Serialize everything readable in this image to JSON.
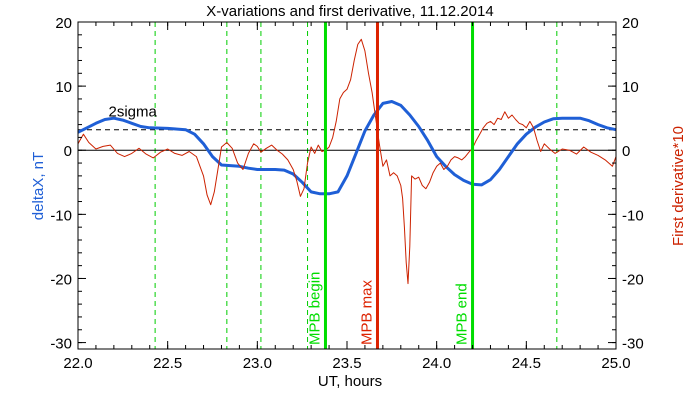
{
  "chart_data": {
    "type": "line",
    "title": "X-variations and first derivative, 11.12.2014",
    "xlabel": "UT, hours",
    "ylabel_left": "deltaX, nT",
    "ylabel_right": "First derivative*10",
    "xlim": [
      22.0,
      25.0
    ],
    "ylim_left": [
      -31,
      20
    ],
    "ylim_right": [
      -31,
      20
    ],
    "x_ticks": [
      "22.0",
      "22.5",
      "23.0",
      "23.5",
      "24.0",
      "24.5",
      "25.0"
    ],
    "y_ticks_left": [
      "20",
      "10",
      "0",
      "-10",
      "-20",
      "-30"
    ],
    "y_ticks_right": [
      "20",
      "10",
      "0",
      "-10",
      "-20",
      "-30"
    ],
    "sigma_label": "2sigma",
    "sigma_level": 3.2,
    "zero_line": 0,
    "colors": {
      "deltaX": "#1f5fd6",
      "derivative": "#cc2200",
      "mpb_boundary": "#00dd00",
      "mpb_max": "#dd2200",
      "dashed_green": "#00cc00"
    },
    "dashed_green_lines": [
      22.43,
      22.83,
      23.02,
      23.28,
      24.67
    ],
    "markers": [
      {
        "label": "MPB begin",
        "x": 23.38,
        "color": "#00dd00"
      },
      {
        "label": "MPB max",
        "x": 23.67,
        "color": "#dd2200"
      },
      {
        "label": "MPB end",
        "x": 24.2,
        "color": "#00dd00"
      }
    ],
    "series": [
      {
        "name": "deltaX",
        "axis": "left",
        "x": [
          22.0,
          22.05,
          22.1,
          22.15,
          22.2,
          22.25,
          22.3,
          22.35,
          22.4,
          22.5,
          22.6,
          22.65,
          22.7,
          22.75,
          22.8,
          22.85,
          22.9,
          22.95,
          23.0,
          23.05,
          23.1,
          23.15,
          23.2,
          23.25,
          23.3,
          23.35,
          23.4,
          23.45,
          23.5,
          23.55,
          23.6,
          23.65,
          23.7,
          23.75,
          23.8,
          23.85,
          23.9,
          23.95,
          24.0,
          24.05,
          24.1,
          24.15,
          24.2,
          24.25,
          24.3,
          24.35,
          24.4,
          24.45,
          24.5,
          24.55,
          24.6,
          24.65,
          24.7,
          24.75,
          24.8,
          24.85,
          24.9,
          24.95,
          25.0
        ],
        "y": [
          2.8,
          3.5,
          4.2,
          4.8,
          5.0,
          4.7,
          4.2,
          3.7,
          3.5,
          3.4,
          3.2,
          2.5,
          1.0,
          -1.0,
          -2.3,
          -2.4,
          -2.5,
          -2.8,
          -3.0,
          -3.0,
          -3.0,
          -3.1,
          -3.7,
          -5.0,
          -6.5,
          -6.8,
          -6.8,
          -6.5,
          -4.0,
          -0.5,
          3.0,
          5.5,
          7.3,
          7.6,
          7.0,
          5.5,
          3.7,
          1.5,
          -1.0,
          -2.5,
          -3.8,
          -4.7,
          -5.3,
          -5.4,
          -4.6,
          -3.0,
          -1.0,
          1.0,
          2.5,
          3.6,
          4.4,
          4.9,
          5.0,
          5.0,
          5.0,
          4.6,
          4.0,
          3.5,
          3.2
        ]
      },
      {
        "name": "First derivative*10",
        "axis": "right",
        "x": [
          22.0,
          22.03,
          22.06,
          22.1,
          22.14,
          22.18,
          22.22,
          22.26,
          22.3,
          22.34,
          22.38,
          22.42,
          22.46,
          22.5,
          22.54,
          22.58,
          22.62,
          22.66,
          22.7,
          22.72,
          22.74,
          22.76,
          22.78,
          22.8,
          22.83,
          22.86,
          22.89,
          22.92,
          22.95,
          22.98,
          23.0,
          23.02,
          23.05,
          23.08,
          23.11,
          23.14,
          23.17,
          23.2,
          23.22,
          23.24,
          23.26,
          23.28,
          23.3,
          23.32,
          23.34,
          23.36,
          23.38,
          23.4,
          23.42,
          23.44,
          23.46,
          23.48,
          23.5,
          23.52,
          23.54,
          23.56,
          23.58,
          23.6,
          23.62,
          23.64,
          23.66,
          23.68,
          23.7,
          23.72,
          23.74,
          23.76,
          23.78,
          23.8,
          23.81,
          23.82,
          23.83,
          23.84,
          23.85,
          23.86,
          23.88,
          23.9,
          23.92,
          23.94,
          23.96,
          23.98,
          24.0,
          24.02,
          24.04,
          24.06,
          24.08,
          24.1,
          24.12,
          24.14,
          24.16,
          24.18,
          24.2,
          24.22,
          24.24,
          24.26,
          24.28,
          24.3,
          24.32,
          24.34,
          24.36,
          24.38,
          24.4,
          24.42,
          24.44,
          24.46,
          24.48,
          24.5,
          24.52,
          24.54,
          24.56,
          24.58,
          24.6,
          24.63,
          24.66,
          24.7,
          24.74,
          24.78,
          24.82,
          24.86,
          24.9,
          24.94,
          24.98,
          25.0
        ],
        "y": [
          1.0,
          2.5,
          1.2,
          0.2,
          0.6,
          0.8,
          -0.5,
          -1.0,
          -0.5,
          0.3,
          -0.6,
          -1.2,
          -0.3,
          0.2,
          -0.5,
          -0.8,
          -0.2,
          -1.0,
          -4.0,
          -7.0,
          -8.5,
          -6.5,
          -3.0,
          0.5,
          1.2,
          0.3,
          -2.0,
          -3.0,
          -0.5,
          1.0,
          0.6,
          -0.3,
          0.3,
          0.8,
          0.0,
          -0.6,
          -1.5,
          -3.0,
          -4.8,
          -7.2,
          -6.0,
          -2.0,
          0.5,
          -0.5,
          0.8,
          -0.2,
          0.0,
          0.5,
          2.0,
          4.5,
          8.0,
          9.0,
          9.5,
          11.0,
          14.0,
          16.5,
          17.3,
          15.5,
          12.0,
          9.0,
          5.0,
          1.0,
          -2.5,
          -1.5,
          -4.0,
          -3.5,
          -4.0,
          -5.5,
          -7.5,
          -12.0,
          -17.5,
          -20.8,
          -15.0,
          -4.0,
          -4.5,
          -4.2,
          -5.5,
          -6.0,
          -5.0,
          -3.5,
          -2.5,
          -2.0,
          -3.0,
          -2.5,
          -1.5,
          -1.0,
          -1.2,
          -1.5,
          -1.0,
          -0.3,
          0.3,
          1.5,
          2.5,
          3.5,
          4.2,
          4.5,
          4.0,
          5.0,
          4.8,
          6.0,
          5.0,
          5.5,
          4.8,
          4.2,
          4.0,
          3.5,
          4.5,
          3.5,
          1.5,
          -0.2,
          1.0,
          0.2,
          -0.5,
          0.2,
          0.0,
          -0.6,
          0.5,
          -0.3,
          -0.8,
          -1.5,
          -2.5,
          -1.0
        ]
      }
    ]
  }
}
